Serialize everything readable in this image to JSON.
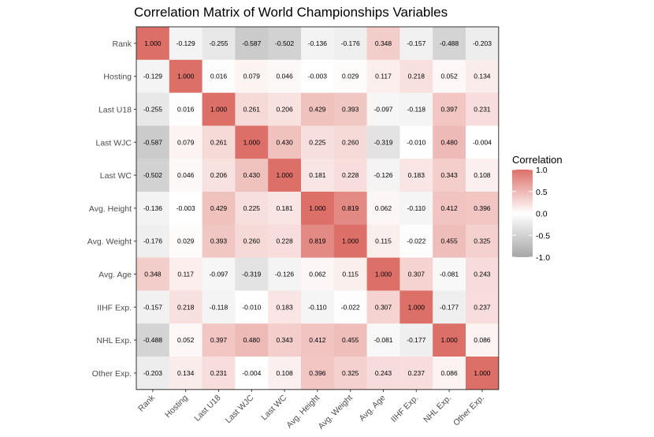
{
  "chart_data": {
    "type": "heatmap",
    "title": "Correlation Matrix of World Championships Variables",
    "xlabel": "",
    "ylabel": "",
    "variables": [
      "Rank",
      "Hosting",
      "Last U18",
      "Last WJC",
      "Last WC",
      "Avg. Height",
      "Avg. Weight",
      "Avg. Age",
      "IIHF Exp.",
      "NHL Exp.",
      "Other Exp."
    ],
    "matrix": [
      [
        1.0,
        -0.129,
        -0.255,
        -0.587,
        -0.502,
        -0.136,
        -0.176,
        0.348,
        -0.157,
        -0.488,
        -0.203
      ],
      [
        -0.129,
        1.0,
        0.016,
        0.079,
        0.046,
        -0.003,
        0.029,
        0.117,
        0.218,
        0.052,
        0.134
      ],
      [
        -0.255,
        0.016,
        1.0,
        0.261,
        0.206,
        0.429,
        0.393,
        -0.097,
        -0.118,
        0.397,
        0.231
      ],
      [
        -0.587,
        0.079,
        0.261,
        1.0,
        0.43,
        0.225,
        0.26,
        -0.319,
        -0.01,
        0.48,
        -0.004
      ],
      [
        -0.502,
        0.046,
        0.206,
        0.43,
        1.0,
        0.181,
        0.228,
        -0.126,
        0.183,
        0.343,
        0.108
      ],
      [
        -0.136,
        -0.003,
        0.429,
        0.225,
        0.181,
        1.0,
        0.819,
        0.062,
        -0.11,
        0.412,
        0.396
      ],
      [
        -0.176,
        0.029,
        0.393,
        0.26,
        0.228,
        0.819,
        1.0,
        0.115,
        -0.022,
        0.455,
        0.325
      ],
      [
        0.348,
        0.117,
        -0.097,
        -0.319,
        -0.126,
        0.062,
        0.115,
        1.0,
        0.307,
        -0.081,
        0.243
      ],
      [
        -0.157,
        0.218,
        -0.118,
        -0.01,
        0.183,
        -0.11,
        -0.022,
        0.307,
        1.0,
        -0.177,
        0.237
      ],
      [
        -0.488,
        0.052,
        0.397,
        0.48,
        0.343,
        0.412,
        0.455,
        -0.081,
        -0.177,
        1.0,
        0.086
      ],
      [
        -0.203,
        0.134,
        0.231,
        -0.004,
        0.108,
        0.396,
        0.325,
        0.243,
        0.237,
        0.086,
        1.0
      ]
    ],
    "color_scale": {
      "low": "#a6a6a6",
      "mid": "#ffffff",
      "high": "#dc7068",
      "limits": [
        -1,
        1
      ]
    },
    "legend": {
      "title": "Correlation",
      "position": "right",
      "breaks": [
        1.0,
        0.5,
        0.0,
        -0.5,
        -1.0
      ],
      "labels": [
        "1.0",
        "0.5",
        "0.0",
        "-0.5",
        "-1.0"
      ]
    },
    "grid": false
  }
}
